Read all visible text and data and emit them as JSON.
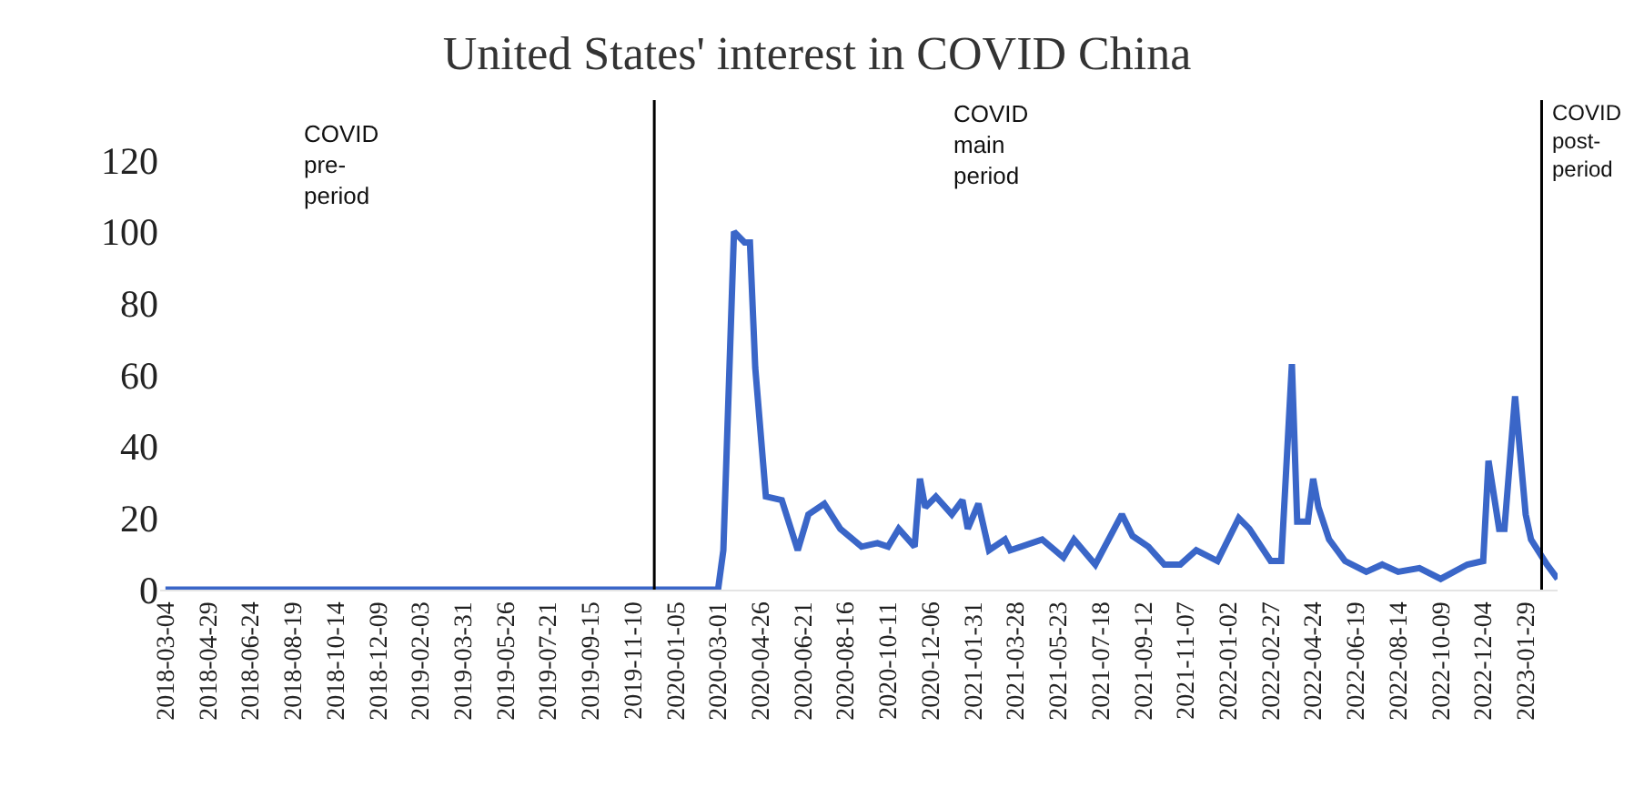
{
  "chart_data": {
    "type": "line",
    "title": "United States' interest in COVID China",
    "x": [
      "2018-03-04",
      "2020-03-01",
      "2020-03-08",
      "2020-03-22",
      "2020-04-05",
      "2020-04-12",
      "2020-04-19",
      "2020-05-03",
      "2020-05-24",
      "2020-06-14",
      "2020-06-28",
      "2020-07-19",
      "2020-08-09",
      "2020-09-06",
      "2020-09-27",
      "2020-10-11",
      "2020-10-25",
      "2020-11-15",
      "2020-11-22",
      "2020-11-29",
      "2020-12-13",
      "2021-01-03",
      "2021-01-17",
      "2021-01-24",
      "2021-02-07",
      "2021-02-21",
      "2021-03-14",
      "2021-03-21",
      "2021-05-02",
      "2021-05-30",
      "2021-06-13",
      "2021-07-11",
      "2021-08-15",
      "2021-08-29",
      "2021-09-19",
      "2021-10-10",
      "2021-10-31",
      "2021-11-21",
      "2021-12-19",
      "2022-01-16",
      "2022-01-30",
      "2022-02-27",
      "2022-03-13",
      "2022-03-27",
      "2022-04-03",
      "2022-04-17",
      "2022-04-24",
      "2022-05-01",
      "2022-05-15",
      "2022-06-05",
      "2022-07-03",
      "2022-07-24",
      "2022-08-14",
      "2022-09-11",
      "2022-10-09",
      "2022-11-13",
      "2022-12-04",
      "2022-12-11",
      "2022-12-25",
      "2023-01-01",
      "2023-01-15",
      "2023-01-29",
      "2023-02-05",
      "2023-02-26",
      "2023-03-12"
    ],
    "series": [
      {
        "color": "#3a66c8",
        "values": [
          0,
          0,
          11,
          100,
          97,
          97,
          62,
          26,
          25,
          11,
          21,
          24,
          17,
          12,
          13,
          12,
          17,
          12,
          31,
          23,
          26,
          21,
          25,
          17,
          24,
          11,
          14,
          11,
          14,
          9,
          14,
          7,
          21,
          15,
          12,
          7,
          7,
          11,
          8,
          20,
          17,
          8,
          8,
          63,
          19,
          19,
          31,
          23,
          14,
          8,
          5,
          7,
          5,
          6,
          3,
          7,
          8,
          36,
          17,
          17,
          54,
          21,
          14,
          7,
          3
        ]
      }
    ],
    "xlim": [
      "2018-02-25",
      "2023-03-12"
    ],
    "xticks": [
      "2018-03-04",
      "2018-04-29",
      "2018-06-24",
      "2018-08-19",
      "2018-10-14",
      "2018-12-09",
      "2019-02-03",
      "2019-03-31",
      "2019-05-26",
      "2019-07-21",
      "2019-09-15",
      "2019-11-10",
      "2020-01-05",
      "2020-03-01",
      "2020-04-26",
      "2020-06-21",
      "2020-08-16",
      "2020-10-11",
      "2020-12-06",
      "2021-01-31",
      "2021-03-28",
      "2021-05-23",
      "2021-07-18",
      "2021-09-12",
      "2021-11-07",
      "2022-01-02",
      "2022-02-27",
      "2022-04-24",
      "2022-06-19",
      "2022-08-14",
      "2022-10-09",
      "2022-12-04",
      "2023-01-29"
    ],
    "ylim": [
      0,
      120
    ],
    "yticks": [
      0,
      20,
      40,
      60,
      80,
      100,
      120
    ],
    "ref_lines": [
      {
        "axis": "x",
        "value": "2019-12-08",
        "color": "#000000"
      },
      {
        "axis": "x",
        "value": "2023-02-19",
        "color": "#000000"
      }
    ],
    "annotations": [
      "COVID pre-period",
      "COVID main period",
      "COVID post-period"
    ],
    "grid": false,
    "marker": "none",
    "line_style": "solid"
  }
}
